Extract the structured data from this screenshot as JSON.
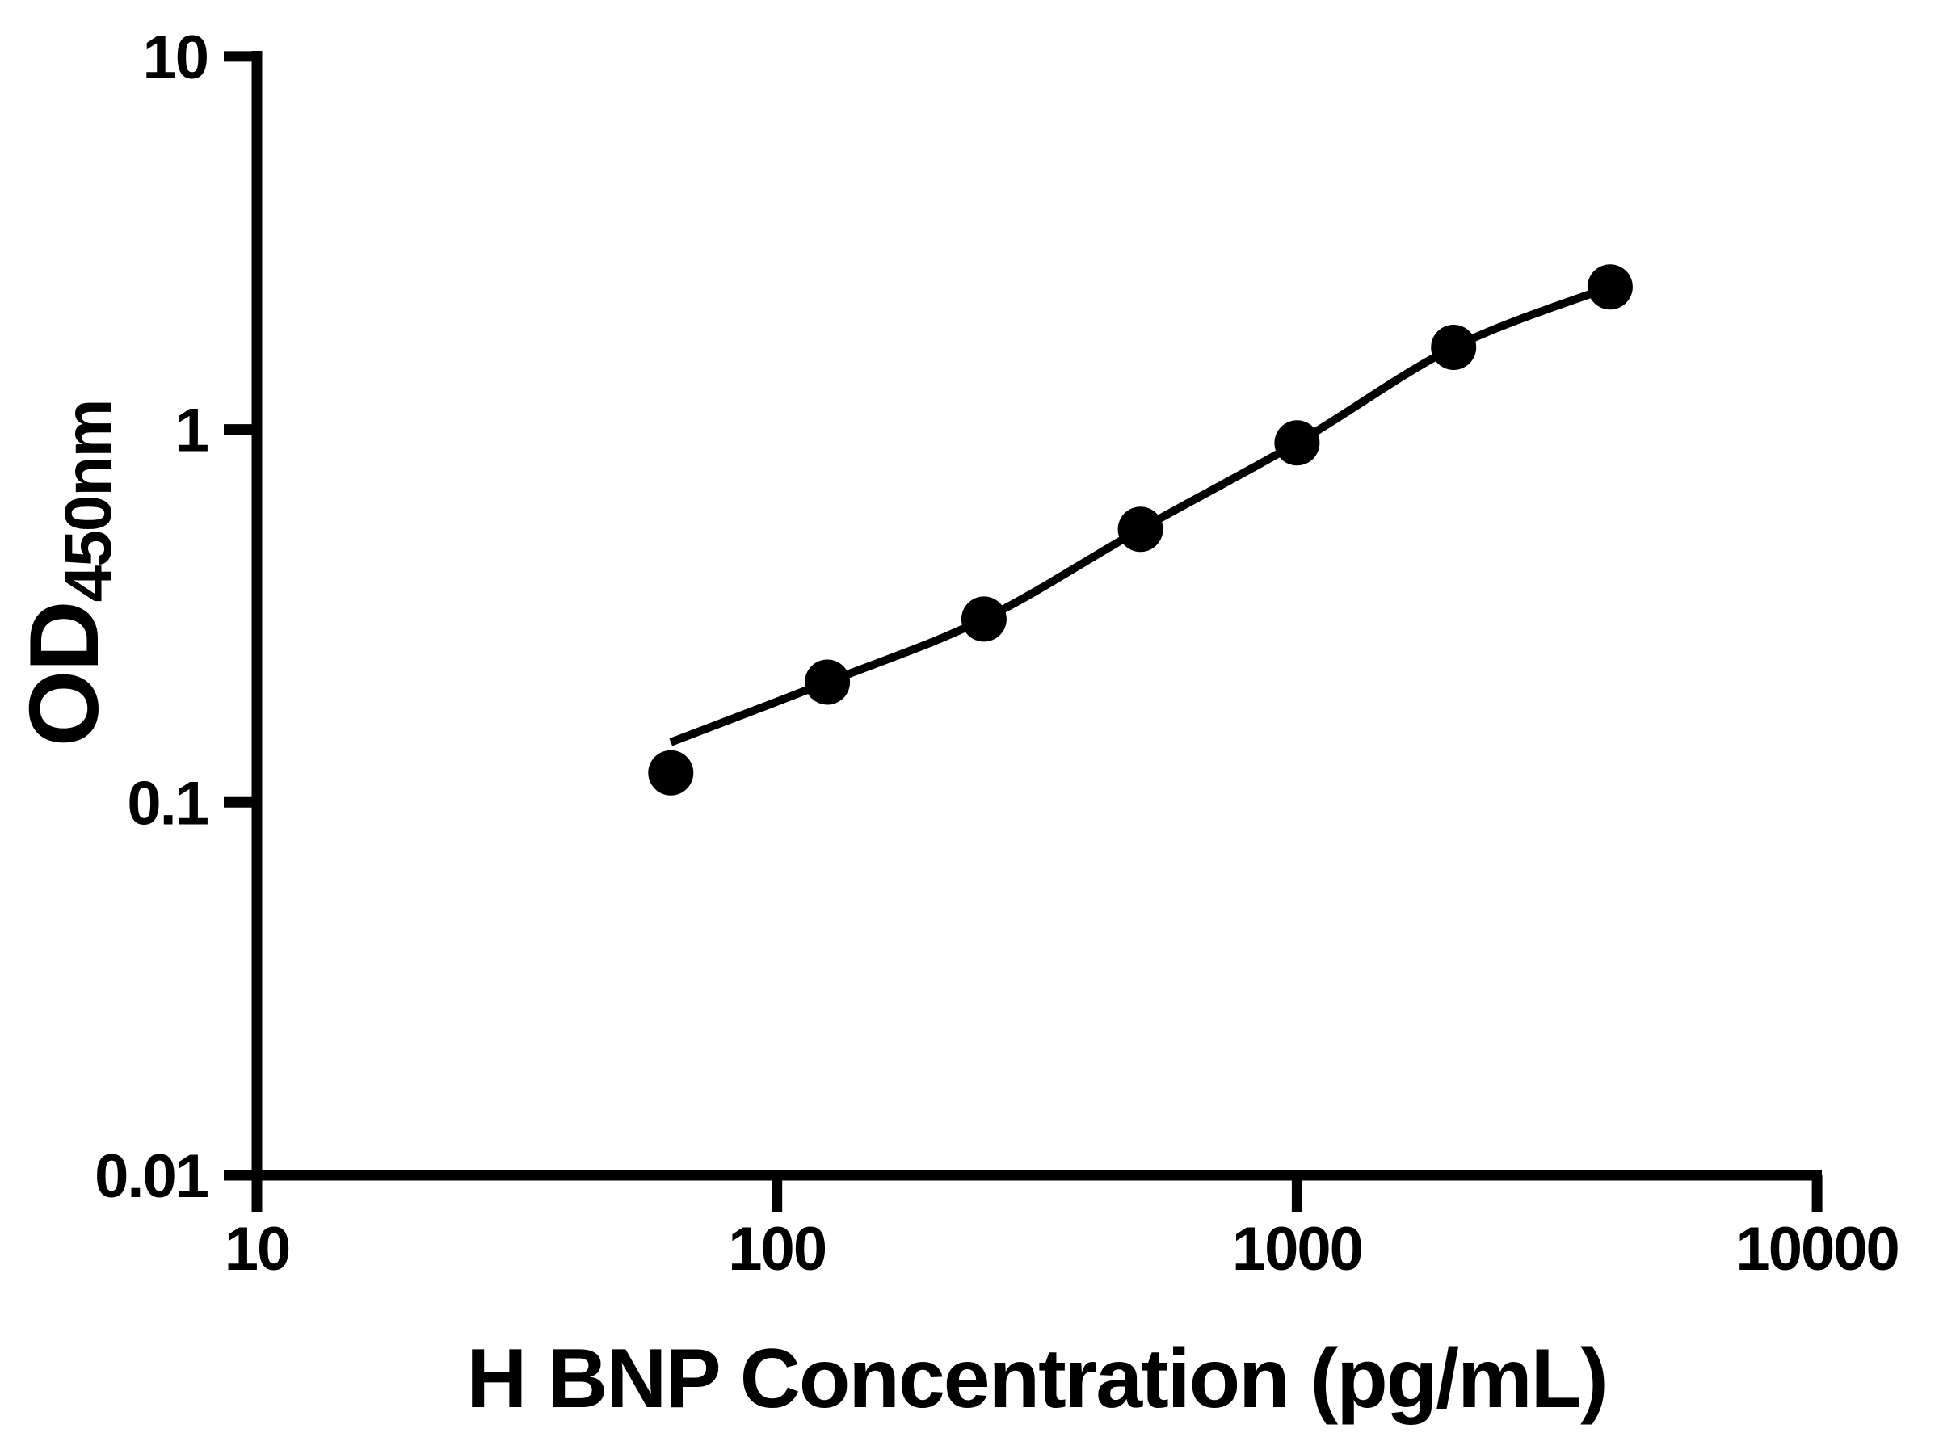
{
  "chart_data": {
    "type": "scatter",
    "title": "",
    "xlabel": "H BNP Concentration (pg/mL)",
    "ylabel_main": "OD",
    "ylabel_sub": "450nm",
    "x_scale": "log",
    "y_scale": "log",
    "xlim": [
      10,
      10000
    ],
    "ylim": [
      0.01,
      10
    ],
    "x_ticks": [
      "10",
      "100",
      "1000",
      "10000"
    ],
    "y_ticks": [
      "0.01",
      "0.1",
      "1",
      "10"
    ],
    "grid": "off",
    "legend": "none",
    "x": [
      62.5,
      125,
      250,
      500,
      1000,
      2000,
      4000
    ],
    "y": [
      0.12,
      0.21,
      0.31,
      0.54,
      0.92,
      1.66,
      2.41
    ],
    "fit_curve_start_od": 0.145,
    "marker_color": "#000000",
    "line_color": "#000000",
    "axis_color": "#000000",
    "background": "#ffffff"
  }
}
